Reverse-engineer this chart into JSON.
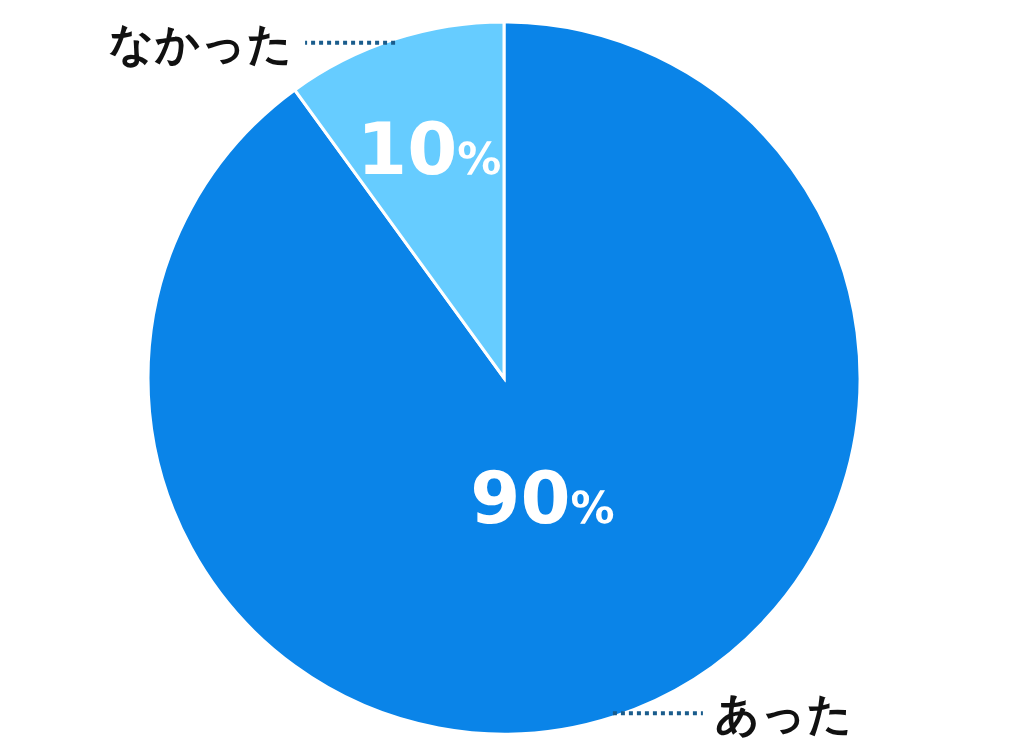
{
  "chart_data": {
    "type": "pie",
    "categories": [
      "あった",
      "なかった"
    ],
    "values": [
      90,
      10
    ],
    "colors": [
      "#0a84e8",
      "#66ccff"
    ],
    "value_labels": [
      "90%",
      "10%"
    ]
  }
}
